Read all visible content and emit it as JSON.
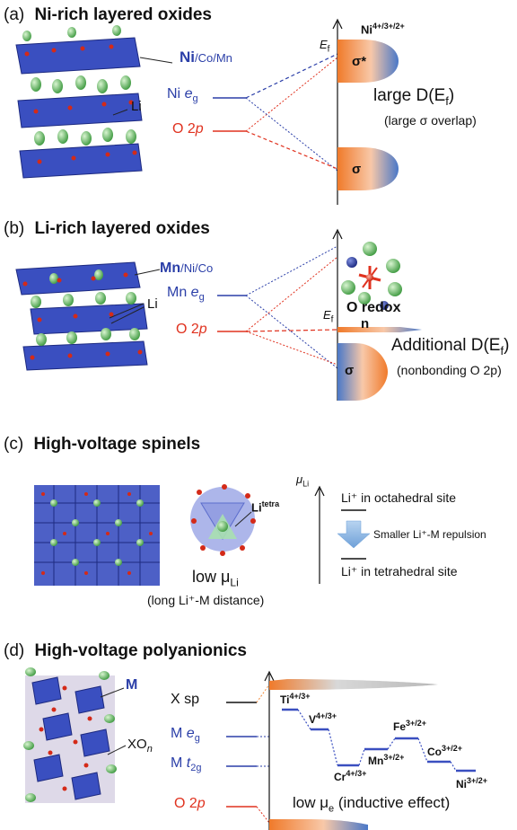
{
  "panel_a": {
    "letter": "(a)",
    "title": "Ni-rich layered oxides",
    "metal_main": "Ni",
    "metal_sub": "/Co/Mn",
    "li_label": "Li",
    "ni_eg_prefix": "Ni ",
    "ni_eg_e": "e",
    "ni_eg_sub": "g",
    "o2p_prefix": "O 2",
    "o2p_p": "p",
    "ef_main": "E",
    "ef_sub": "f",
    "ni_ox_main": "Ni",
    "ni_ox_sup": "4+/3+/2+",
    "sigma_star": "σ*",
    "sigma": "σ",
    "large_d": "large D(E",
    "large_d_sub": "f",
    "large_d_close": ")",
    "overlap": "(large σ overlap)"
  },
  "panel_b": {
    "letter": "(b)",
    "title": "Li-rich layered oxides",
    "metal_main": "Mn",
    "metal_sub": "/Ni/Co",
    "li_label": "Li",
    "mn_eg_prefix": "Mn ",
    "mn_eg_e": "e",
    "mn_eg_sub": "g",
    "o2p_prefix": "O 2",
    "o2p_p": "p",
    "ef_main": "E",
    "ef_sub": "f",
    "o_redox": "O redox",
    "n_label": "n",
    "additional_d": "Additional D(E",
    "additional_d_sub": "f",
    "additional_d_close": ")",
    "nonbonding": "(nonbonding O 2p)",
    "sigma": "σ"
  },
  "panel_c": {
    "letter": "(c)",
    "title": "High-voltage spinels",
    "li_tetra_main": "Li",
    "li_tetra_sup": "tetra",
    "mu_main": "μ",
    "mu_sub": "Li",
    "low_mu_prefix": "low μ",
    "low_mu_sub": "Li",
    "long_distance": "(long Li⁺-M distance)",
    "octa": "Li⁺ in octahedral site",
    "repulsion": "Smaller Li⁺-M repulsion",
    "tetra": "Li⁺ in tetrahedral site"
  },
  "panel_d": {
    "letter": "(d)",
    "title": "High-voltage polyanionics",
    "m_label": "M",
    "xo_label": "XO",
    "xo_sub": "n",
    "x_sp": "X sp",
    "m_eg_prefix": "M ",
    "m_eg_e": "e",
    "m_eg_sub": "g",
    "m_t2g_prefix": "M ",
    "m_t2g_t": "t",
    "m_t2g_sub": "2g",
    "o2p_prefix": "O 2",
    "o2p_p": "p",
    "ions": [
      {
        "el": "Ti",
        "sup": "4+/3+"
      },
      {
        "el": "V",
        "sup": "4+/3+"
      },
      {
        "el": "Cr",
        "sup": "4+/3+"
      },
      {
        "el": "Mn",
        "sup": "3+/2+"
      },
      {
        "el": "Fe",
        "sup": "3+/2+"
      },
      {
        "el": "Co",
        "sup": "3+/2+"
      },
      {
        "el": "Ni",
        "sup": "3+/2+"
      }
    ],
    "low_mu_prefix": "low μ",
    "low_mu_sub": "e",
    "inductive": " (inductive effect)"
  },
  "colors": {
    "blue": "#2b3fa8",
    "red": "#e0321f",
    "orange": "#f28a3a",
    "li_green": "#6cc46a",
    "arrow_blue": "#7fb0e0"
  }
}
